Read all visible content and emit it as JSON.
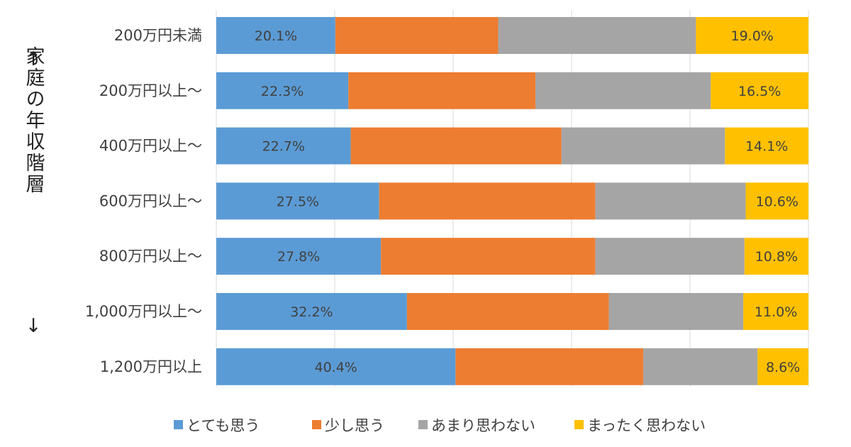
{
  "chart_data": {
    "type": "bar",
    "orientation": "horizontal",
    "stacked": "100%",
    "ylabel": "家庭の年収階層",
    "axis_arrows": {
      "top": "↑",
      "bottom": "↓"
    },
    "categories": [
      "200万円未満",
      "200万円以上～",
      "400万円以上～",
      "600万円以上～",
      "800万円以上～",
      "1,000万円以上～",
      "1,200万円以上"
    ],
    "series": [
      {
        "name": "とても思う",
        "color": "#5B9BD5",
        "values": [
          20.1,
          22.3,
          22.7,
          27.5,
          27.8,
          32.2,
          40.4
        ],
        "labels": [
          "20.1%",
          "22.3%",
          "22.7%",
          "27.5%",
          "27.8%",
          "32.2%",
          "40.4%"
        ]
      },
      {
        "name": "少し思う",
        "color": "#ED7D31",
        "values": [
          27.5,
          31.6,
          35.6,
          36.5,
          36.2,
          34.1,
          31.7
        ],
        "labels": [
          "",
          "",
          "",
          "",
          "",
          "",
          ""
        ]
      },
      {
        "name": "あまり思わない",
        "color": "#A5A5A5",
        "values": [
          33.4,
          29.6,
          27.6,
          25.4,
          25.2,
          22.7,
          19.3
        ],
        "labels": [
          "",
          "",
          "",
          "",
          "",
          "",
          ""
        ]
      },
      {
        "name": "まったく思わない",
        "color": "#FFC000",
        "values": [
          19.0,
          16.5,
          14.1,
          10.6,
          10.8,
          11.0,
          8.6
        ],
        "labels": [
          "19.0%",
          "16.5%",
          "14.1%",
          "10.6%",
          "10.8%",
          "11.0%",
          "8.6%"
        ]
      }
    ],
    "xlim": [
      0,
      100
    ],
    "grid": true,
    "legend": "bottom"
  }
}
